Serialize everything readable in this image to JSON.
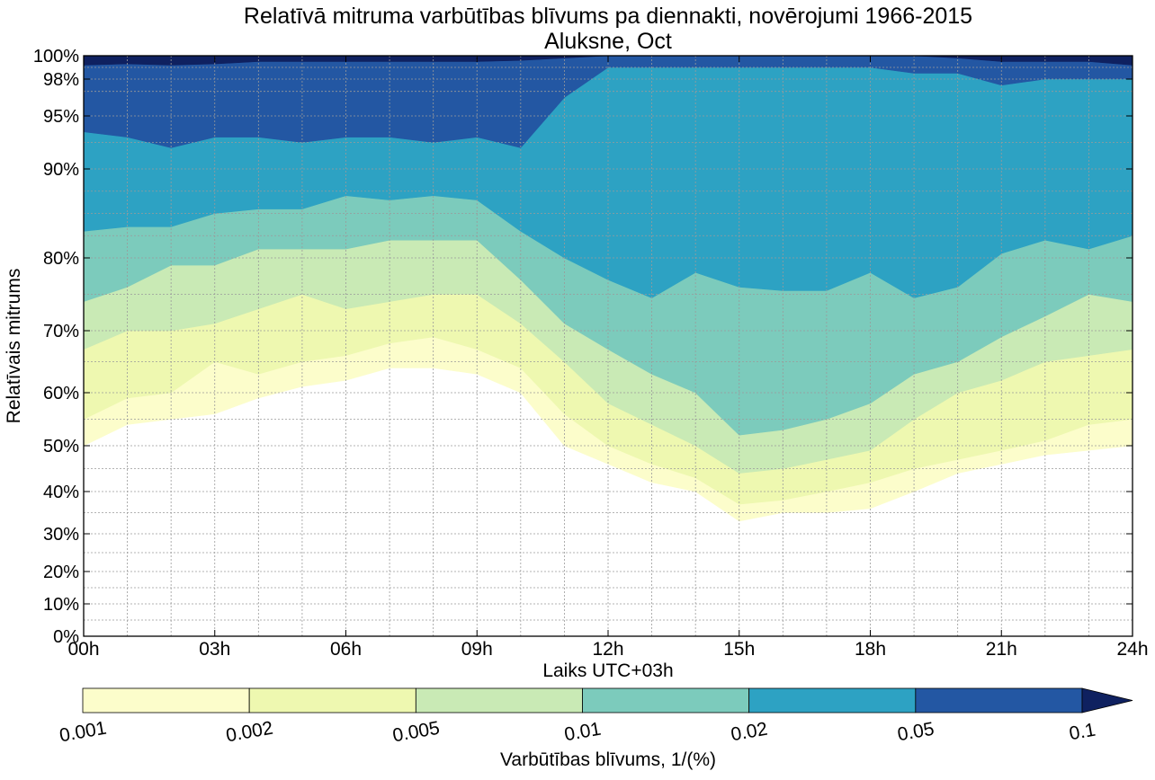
{
  "chart_data": {
    "type": "heatmap",
    "title": "Relatīvā mitruma varbūtības blīvums pa diennakti, novērojumi 1966-2015",
    "subtitle": "Aluksne, Oct",
    "xlabel": "Laiks UTC+03h",
    "ylabel": "Relatīvais mitrums",
    "xlim": [
      0,
      24
    ],
    "ylim": [
      0,
      100
    ],
    "x_ticks": [
      0,
      3,
      6,
      9,
      12,
      15,
      18,
      21,
      24
    ],
    "x_tick_labels": [
      "00h",
      "03h",
      "06h",
      "09h",
      "12h",
      "15h",
      "18h",
      "21h",
      "24h"
    ],
    "y_ticks": [
      0,
      10,
      20,
      30,
      40,
      50,
      60,
      70,
      80,
      90,
      95,
      98,
      100
    ],
    "y_tick_labels": [
      "0%",
      "10%",
      "20%",
      "30%",
      "40%",
      "50%",
      "60%",
      "70%",
      "80%",
      "90%",
      "95%",
      "98%",
      "100%"
    ],
    "y_scale": "nonlinear",
    "grid": true,
    "colorbar": {
      "label": "Varbūtības blīvums, 1/(%)",
      "levels": [
        0.001,
        0.002,
        0.005,
        0.01,
        0.02,
        0.05,
        0.1
      ],
      "level_labels": [
        "0.001",
        "0.002",
        "0.005",
        "0.01",
        "0.02",
        "0.05",
        "0.1"
      ],
      "colors": [
        "#fcfdcb",
        "#eef8b0",
        "#c9eab5",
        "#7ccbbc",
        "#2da2c3",
        "#2357a3",
        "#0f2160"
      ],
      "extend": "max"
    },
    "contour_x": [
      0,
      1,
      2,
      3,
      4,
      5,
      6,
      7,
      8,
      9,
      10,
      11,
      12,
      13,
      14,
      15,
      16,
      17,
      18,
      19,
      20,
      21,
      22,
      23,
      24
    ],
    "contours": [
      {
        "level": 0.001,
        "y": [
          50,
          54,
          55,
          56,
          59,
          61,
          62,
          64,
          64,
          63,
          60,
          50,
          46,
          42,
          40,
          33,
          35,
          35,
          36,
          40,
          44,
          46,
          48,
          49,
          50
        ]
      },
      {
        "level": 0.002,
        "y": [
          55,
          59,
          60,
          65,
          63,
          65,
          66,
          68,
          69,
          67,
          64,
          56,
          50,
          46,
          43,
          37,
          38,
          40,
          42,
          45,
          47,
          49,
          51,
          54,
          55
        ]
      },
      {
        "level": 0.005,
        "y": [
          67,
          70,
          70,
          71,
          73,
          75,
          73,
          74,
          75,
          75,
          71,
          65,
          58,
          54,
          50,
          44,
          45,
          47,
          49,
          55,
          60,
          62,
          65,
          66,
          67
        ]
      },
      {
        "level": 0.01,
        "y": [
          74,
          76,
          79,
          79,
          81,
          81,
          81,
          82,
          82,
          82,
          77,
          71,
          67,
          63,
          60,
          52,
          53,
          55,
          58,
          63,
          65,
          69,
          72,
          75,
          74
        ]
      },
      {
        "level": 0.02,
        "y": [
          83,
          83.5,
          83.5,
          85,
          85.5,
          85.5,
          87,
          86.5,
          87,
          86.5,
          83,
          80,
          77,
          74.5,
          78,
          76,
          75.5,
          75.5,
          78,
          74.5,
          76,
          80.5,
          82,
          81,
          82.5
        ]
      },
      {
        "level": 0.05,
        "y": [
          93.5,
          93,
          92,
          93,
          93,
          92.5,
          93,
          93,
          92.5,
          93,
          92,
          96.5,
          99,
          99,
          99,
          99,
          99,
          99,
          99,
          98.5,
          98.5,
          97.5,
          98,
          98,
          98
        ]
      },
      {
        "level": 0.1,
        "y": [
          99.2,
          99.3,
          99.2,
          99.3,
          99.5,
          99.5,
          99.5,
          99.5,
          99.5,
          99.5,
          99.6,
          99.8,
          100,
          100,
          100,
          100,
          100,
          100,
          100,
          100,
          99.8,
          99.5,
          99.5,
          99.5,
          99.2
        ]
      }
    ]
  }
}
